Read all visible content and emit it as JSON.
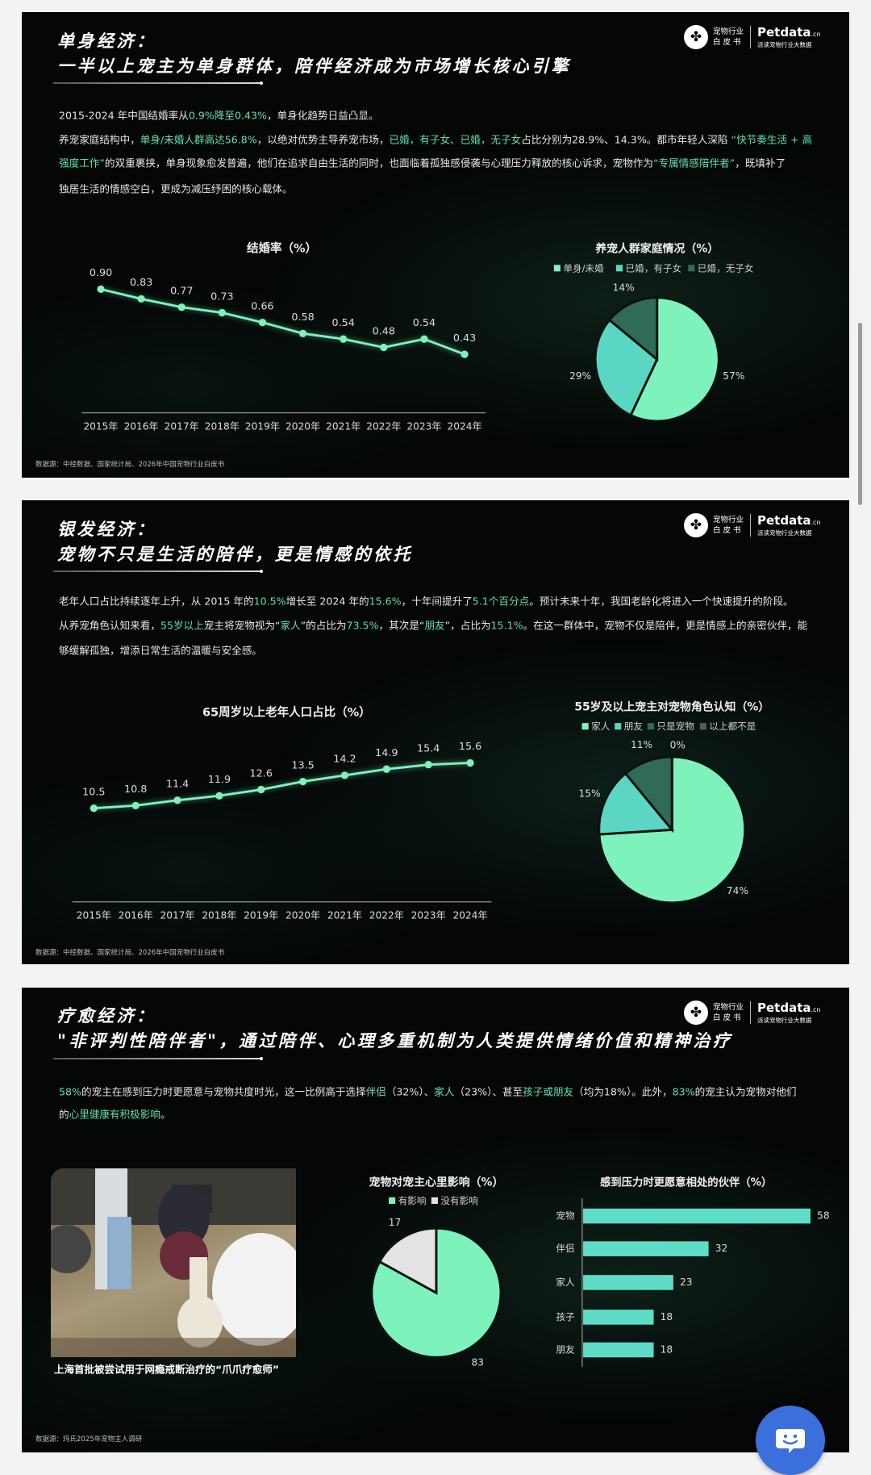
{
  "colors": {
    "accent": "#5fe0b2",
    "mint": "#7ef2bd",
    "teal": "#5ad6c2",
    "dark_green": "#2f6b56",
    "gray": "#555a58",
    "light_gray": "#e3e3e3",
    "bar": "#5edcc8",
    "chat_button": "#3b6fdc",
    "page_bg": "#f2f3f5"
  },
  "logo": {
    "cn_line1": "宠物行业",
    "cn_line2": "白 皮 书",
    "brand": "Petdata",
    "brand_suffix": ".cn",
    "tagline": "派读宠物行业大数据",
    "icon": "paw-clover-icon"
  },
  "panels": [
    {
      "title_line1": "单身经济：",
      "title_line2": "一半以上宠主为单身群体，陪伴经济成为市场增长核心引擎",
      "paragraph_lines": [
        [
          {
            "text": "2015-2024 年中国结婚率从",
            "hl": false
          },
          {
            "text": "0.9%降至0.43%",
            "hl": true
          },
          {
            "text": "，单身化趋势日益凸显。",
            "hl": false
          }
        ],
        [
          {
            "text": "养宠家庭结构中，",
            "hl": false
          },
          {
            "text": "单身/未婚人群高达56.8%",
            "hl": true
          },
          {
            "text": "，以绝对优势主导养宠市场，",
            "hl": false
          },
          {
            "text": "已婚，有子女、已婚，无子女",
            "hl": true
          },
          {
            "text": "占比分别为28.9%、14.3%。都市年轻人深陷 ",
            "hl": false
          },
          {
            "text": "“快节奏生活 + 高",
            "hl": true
          }
        ],
        [
          {
            "text": "强度工作”",
            "hl": true
          },
          {
            "text": "的双重裹挟，单身现象愈发普遍，他们在追求自由生活的同时，也面临着孤独感侵袭与心理压力释放的核心诉求，宠物作为",
            "hl": false
          },
          {
            "text": "“专属情感陪伴者”",
            "hl": true
          },
          {
            "text": "，既填补了",
            "hl": false
          }
        ],
        [
          {
            "text": "独居生活的情感空白，更成为减压纾困的核心载体。",
            "hl": false
          }
        ]
      ],
      "source": "数据源：中经数据、国家统计局、2026年中国宠物行业白皮书"
    },
    {
      "title_line1": "银发经济：",
      "title_line2": "宠物不只是生活的陪伴，更是情感的依托",
      "paragraph_lines": [
        [
          {
            "text": "老年人口占比持续逐年上升，从 2015 年的",
            "hl": false
          },
          {
            "text": "10.5%",
            "hl": true
          },
          {
            "text": "增长至 2024 年的",
            "hl": false
          },
          {
            "text": "15.6%",
            "hl": true
          },
          {
            "text": "，十年间提升了",
            "hl": false
          },
          {
            "text": "5.1个百分点",
            "hl": true
          },
          {
            "text": "。预计未来十年，我国老龄化将进入一个快速提升的阶段。",
            "hl": false
          }
        ],
        [
          {
            "text": "从养宠角色认知来看，",
            "hl": false
          },
          {
            "text": "55岁以上",
            "hl": true
          },
          {
            "text": "宠主将宠物视为“",
            "hl": false
          },
          {
            "text": "家人",
            "hl": true
          },
          {
            "text": "”的占比为",
            "hl": false
          },
          {
            "text": "73.5%",
            "hl": true
          },
          {
            "text": "，其次是“",
            "hl": false
          },
          {
            "text": "朋友",
            "hl": true
          },
          {
            "text": "”，占比为",
            "hl": false
          },
          {
            "text": "15.1%",
            "hl": true
          },
          {
            "text": "。在这一群体中，宠物不仅是陪伴，更是情感上的亲密伙伴，能",
            "hl": false
          }
        ],
        [
          {
            "text": "够缓解孤独，增添日常生活的温暖与安全感。",
            "hl": false
          }
        ]
      ],
      "source": "数据源：中经数据、国家统计局、2026年中国宠物行业白皮书"
    },
    {
      "title_line1": "疗愈经济：",
      "title_line2": "\"非评判性陪伴者\"，通过陪伴、心理多重机制为人类提供情绪价值和精神治疗",
      "paragraph_lines": [
        [
          {
            "text": "58%",
            "hl": true
          },
          {
            "text": "的宠主在感到压力时更愿意与宠物共度时光，这一比例高于选择",
            "hl": false
          },
          {
            "text": "伴侣",
            "hl": true
          },
          {
            "text": "（32%）、",
            "hl": false
          },
          {
            "text": "家人",
            "hl": true
          },
          {
            "text": "（23%）、甚至",
            "hl": false
          },
          {
            "text": "孩子或朋友",
            "hl": true
          },
          {
            "text": "（均为18%）。此外，",
            "hl": false
          },
          {
            "text": "83%",
            "hl": true
          },
          {
            "text": "的宠主认为宠物对他们",
            "hl": false
          }
        ],
        [
          {
            "text": "的",
            "hl": false
          },
          {
            "text": "心里健康有积极影响",
            "hl": true
          },
          {
            "text": "。",
            "hl": false
          }
        ]
      ],
      "photo_caption": "上海首批被尝试用于网瘾戒断治疗的“爪爪疗愈师”",
      "source": "数据源：玛氏2025年宠物主人调研"
    }
  ],
  "chart_data": [
    {
      "type": "line",
      "title": "结婚率（%）",
      "categories": [
        "2015年",
        "2016年",
        "2017年",
        "2018年",
        "2019年",
        "2020年",
        "2021年",
        "2022年",
        "2023年",
        "2024年"
      ],
      "values": [
        0.9,
        0.83,
        0.77,
        0.73,
        0.66,
        0.58,
        0.54,
        0.48,
        0.54,
        0.43
      ],
      "decimals": 2,
      "grid": false,
      "color": "#7ef2bd"
    },
    {
      "type": "pie",
      "title": "养宠人群家庭情况（%）",
      "labels": [
        "单身/未婚",
        "已婚，有子女",
        "已婚，无子女"
      ],
      "values": [
        57,
        29,
        14
      ],
      "value_suffix": "%",
      "colors": [
        "#7ef2bd",
        "#5ad6c2",
        "#2f6b56"
      ],
      "legend": "top"
    },
    {
      "type": "line",
      "title": "65周岁以上老年人口占比（%）",
      "categories": [
        "2015年",
        "2016年",
        "2017年",
        "2018年",
        "2019年",
        "2020年",
        "2021年",
        "2022年",
        "2023年",
        "2024年"
      ],
      "values": [
        10.5,
        10.8,
        11.4,
        11.9,
        12.6,
        13.5,
        14.2,
        14.9,
        15.4,
        15.6
      ],
      "decimals": 1,
      "grid": false,
      "color": "#7ef2bd"
    },
    {
      "type": "pie",
      "title": "55岁及以上宠主对宠物角色认知（%）",
      "labels": [
        "家人",
        "朋友",
        "只是宠物",
        "以上都不是"
      ],
      "values": [
        74,
        15,
        11,
        0
      ],
      "value_suffix": "%",
      "colors": [
        "#7ef2bd",
        "#5ad6c2",
        "#2f6b56",
        "#555a58"
      ],
      "legend": "top"
    },
    {
      "type": "pie",
      "title": "宠物对宠主心里影响（%）",
      "labels": [
        "有影响",
        "没有影响"
      ],
      "values": [
        83,
        17
      ],
      "value_suffix": "",
      "colors": [
        "#7ef2bd",
        "#e3e3e3"
      ],
      "legend": "top"
    },
    {
      "type": "bar",
      "orientation": "horizontal",
      "title": "感到压力时更愿意相处的伙伴（%）",
      "categories": [
        "宠物",
        "伴侣",
        "家人",
        "孩子",
        "朋友"
      ],
      "values": [
        58,
        32,
        23,
        18,
        18
      ],
      "color": "#5edcc8"
    }
  ],
  "chat_button": {
    "icon": "chat-smile-icon"
  }
}
